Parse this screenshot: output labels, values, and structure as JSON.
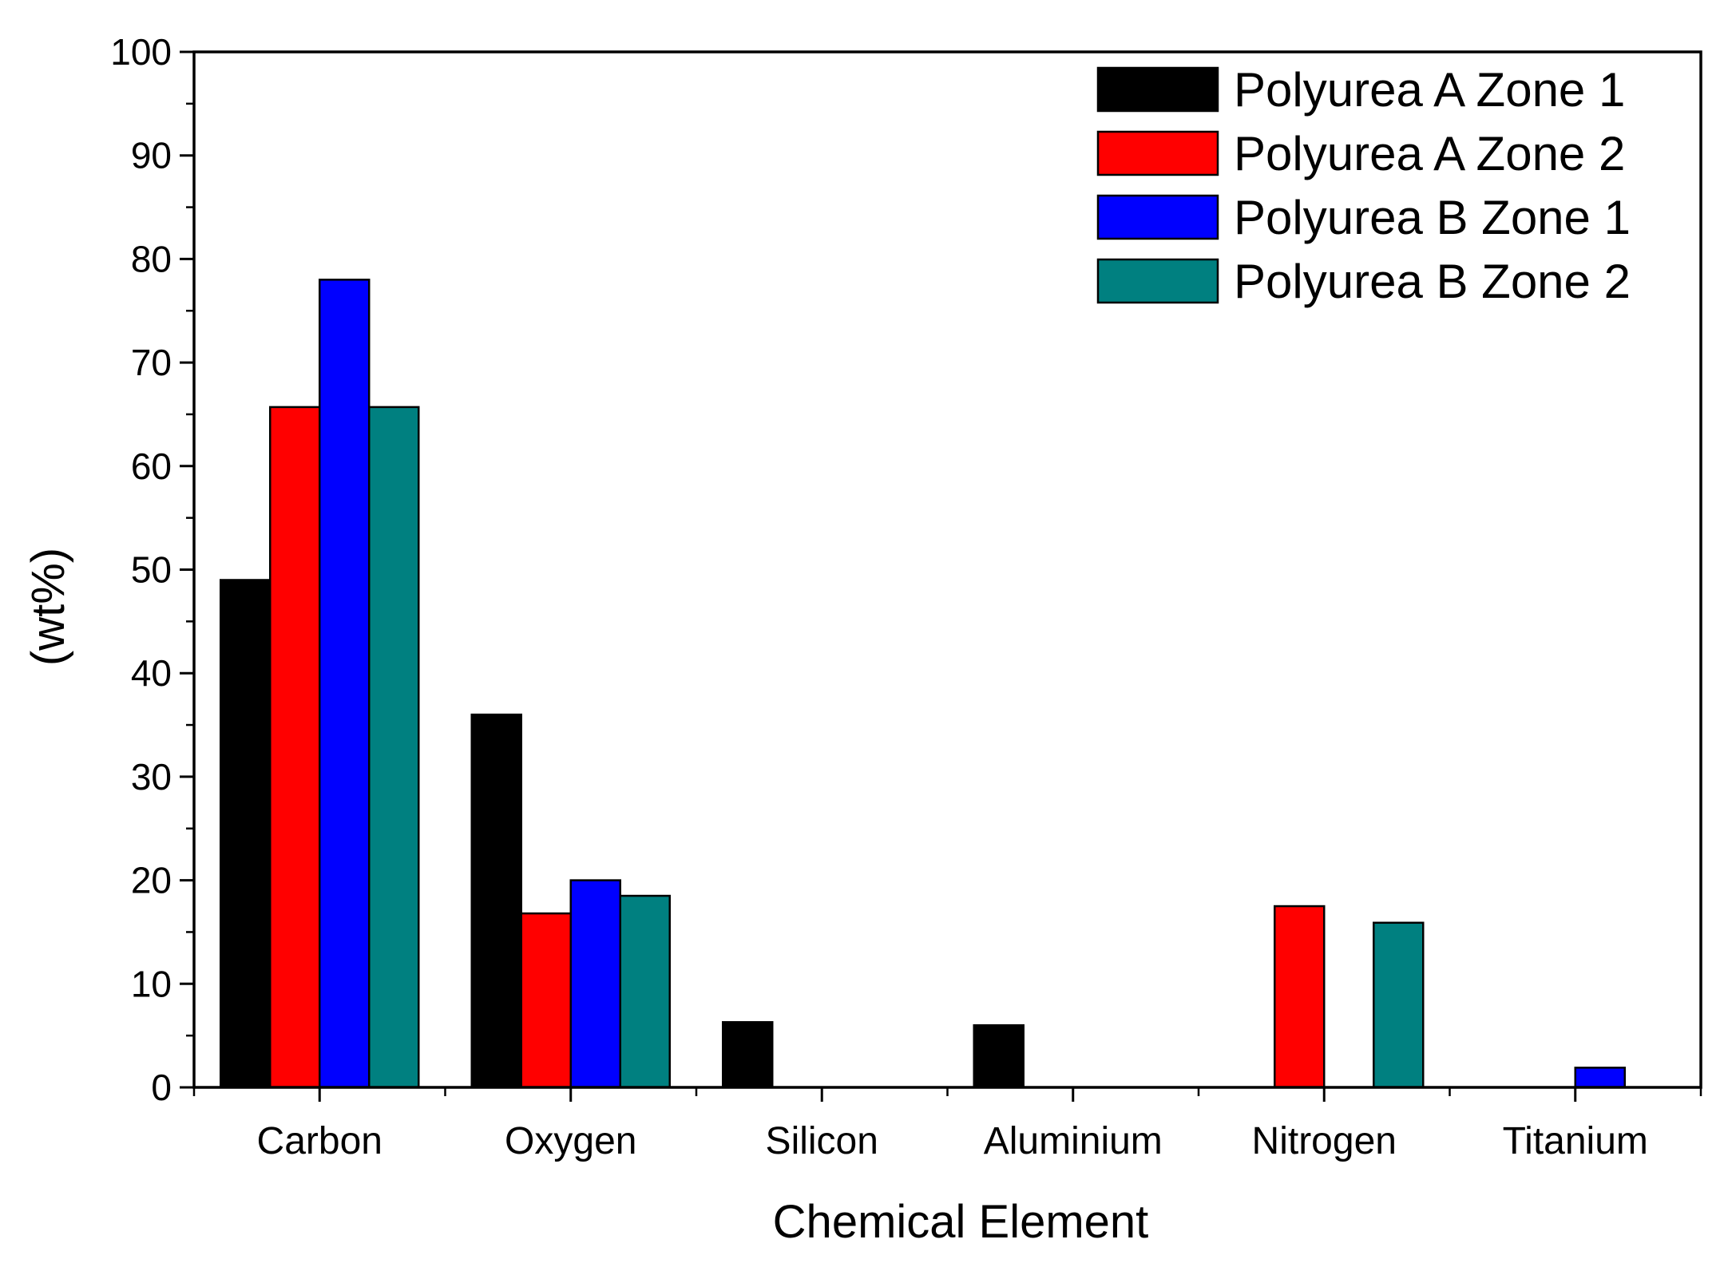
{
  "chart_data": {
    "type": "bar",
    "title": "",
    "xlabel": "Chemical Element",
    "ylabel": "(wt%)",
    "ylim": [
      0,
      100
    ],
    "yticks": [
      0,
      10,
      20,
      30,
      40,
      50,
      60,
      70,
      80,
      90,
      100
    ],
    "categories": [
      "Carbon",
      "Oxygen",
      "Silicon",
      "Aluminium",
      "Nitrogen",
      "Titanium"
    ],
    "series": [
      {
        "name": "Polyurea A Zone 1",
        "color": "#000000",
        "values": [
          49,
          36,
          6.3,
          6,
          null,
          null
        ]
      },
      {
        "name": "Polyurea A Zone 2",
        "color": "#ff0000",
        "values": [
          65.7,
          16.8,
          null,
          null,
          17.5,
          null
        ]
      },
      {
        "name": "Polyurea B Zone 1",
        "color": "#0000ff",
        "values": [
          78,
          20,
          null,
          null,
          null,
          1.9
        ]
      },
      {
        "name": "Polyurea B Zone 2",
        "color": "#008080",
        "values": [
          65.7,
          18.5,
          null,
          null,
          15.9,
          null
        ]
      }
    ],
    "legend_position": "top-right",
    "grid": false
  }
}
